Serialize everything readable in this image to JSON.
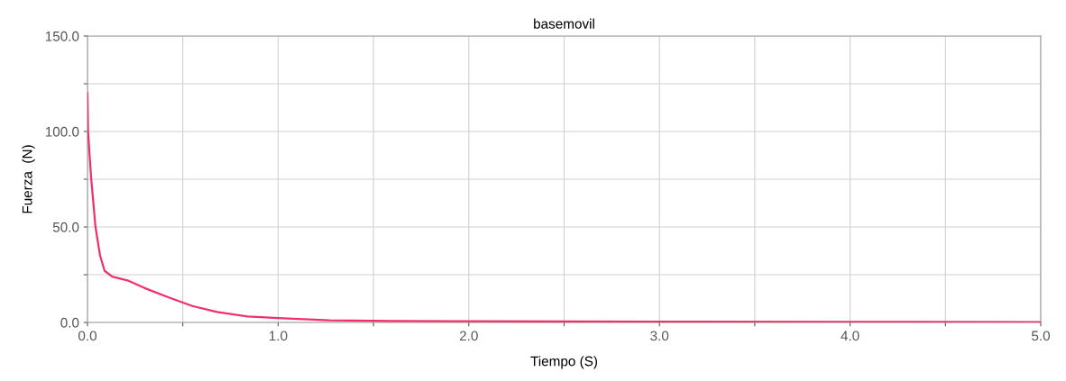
{
  "chart_data": {
    "type": "line",
    "title": "basemovil",
    "xlabel": "Tiempo (S)",
    "ylabel": "Fuerza  (N)",
    "x": [
      0,
      0.003,
      0.019,
      0.042,
      0.066,
      0.09,
      0.13,
      0.21,
      0.3,
      0.43,
      0.55,
      0.68,
      0.84,
      1.0,
      1.27,
      1.6,
      2.0,
      2.5,
      3.0,
      4.0,
      5.0
    ],
    "series": [
      {
        "color": "#f0306a",
        "values": [
          120,
          100,
          76,
          50,
          35,
          27,
          24,
          22,
          18,
          13,
          8.6,
          5.5,
          3.1,
          2.3,
          1.1,
          0.8,
          0.6,
          0.5,
          0.4,
          0.3,
          0.2
        ]
      }
    ],
    "xlim": [
      0,
      5
    ],
    "ylim": [
      0,
      150
    ],
    "xticks": [
      {
        "value": 0,
        "label": "0.0"
      },
      {
        "value": 0.5,
        "label": null
      },
      {
        "value": 1,
        "label": "1.0"
      },
      {
        "value": 1.5,
        "label": null
      },
      {
        "value": 2,
        "label": "2.0"
      },
      {
        "value": 2.5,
        "label": null
      },
      {
        "value": 3,
        "label": "3.0"
      },
      {
        "value": 3.5,
        "label": null
      },
      {
        "value": 4,
        "label": "4.0"
      },
      {
        "value": 4.5,
        "label": null
      },
      {
        "value": 5,
        "label": "5.0"
      }
    ],
    "yticks": [
      {
        "value": 0,
        "label": "0.0"
      },
      {
        "value": 25,
        "label": null
      },
      {
        "value": 50,
        "label": "50.0"
      },
      {
        "value": 75,
        "label": null
      },
      {
        "value": 100,
        "label": "100.0"
      },
      {
        "value": 125,
        "label": null
      },
      {
        "value": 150,
        "label": "150.0"
      }
    ],
    "grid": true,
    "line_style": "solid",
    "marker": "none"
  }
}
